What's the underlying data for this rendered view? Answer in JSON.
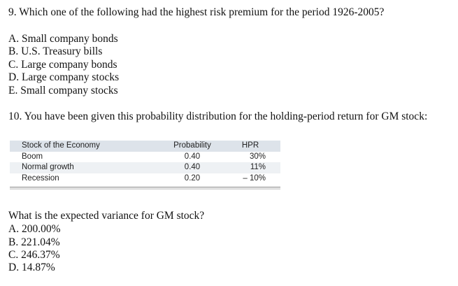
{
  "question9": {
    "prompt": "9. Which one of the following had the highest risk premium for the period 1926-2005?",
    "options": [
      "A. Small company bonds",
      "B. U.S. Treasury bills",
      "C. Large company bonds",
      "D. Large company stocks",
      "E. Small company stocks"
    ]
  },
  "question10": {
    "prompt": "10. You have been given this probability distribution for the holding-period return for GM stock:",
    "table": {
      "headers": [
        "Stock of the Economy",
        "Probability",
        "HPR"
      ],
      "rows": [
        [
          "Boom",
          "0.40",
          "30%"
        ],
        [
          "Normal growth",
          "0.40",
          "11%"
        ],
        [
          "Recession",
          "0.20",
          "– 10%"
        ]
      ]
    },
    "followup": "What is the expected variance for GM stock?",
    "options": [
      "A. 200.00%",
      "B. 221.04%",
      "C. 246.37%",
      "D. 14.87%"
    ]
  }
}
